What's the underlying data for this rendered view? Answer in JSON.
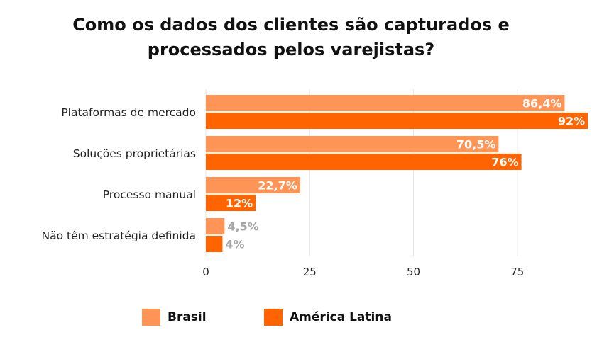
{
  "chart_data": {
    "type": "bar",
    "orientation": "horizontal",
    "title": "Como os dados dos clientes são capturados e processados pelos varejistas?",
    "title_lines": [
      "Como os dados dos clientes são capturados e",
      "processados pelos varejistas?"
    ],
    "categories": [
      "Plataformas de mercado",
      "Soluções proprietárias",
      "Processo manual",
      "Não têm estratégia definida"
    ],
    "series": [
      {
        "name": "Brasil",
        "color": "#FF9457",
        "values": [
          86.4,
          70.5,
          22.7,
          4.5
        ],
        "labels": [
          "86,4%",
          "70,5%",
          "22,7%",
          "4,5%"
        ]
      },
      {
        "name": "América Latina",
        "color": "#FF6400",
        "values": [
          92,
          76,
          12,
          4
        ],
        "labels": [
          "92%",
          "76%",
          "12%",
          "4%"
        ]
      }
    ],
    "xlim": [
      0,
      93
    ],
    "xticks": [
      0,
      25,
      50,
      75
    ],
    "xlabel": "",
    "ylabel": "",
    "grid": true,
    "legend_position": "bottom"
  }
}
